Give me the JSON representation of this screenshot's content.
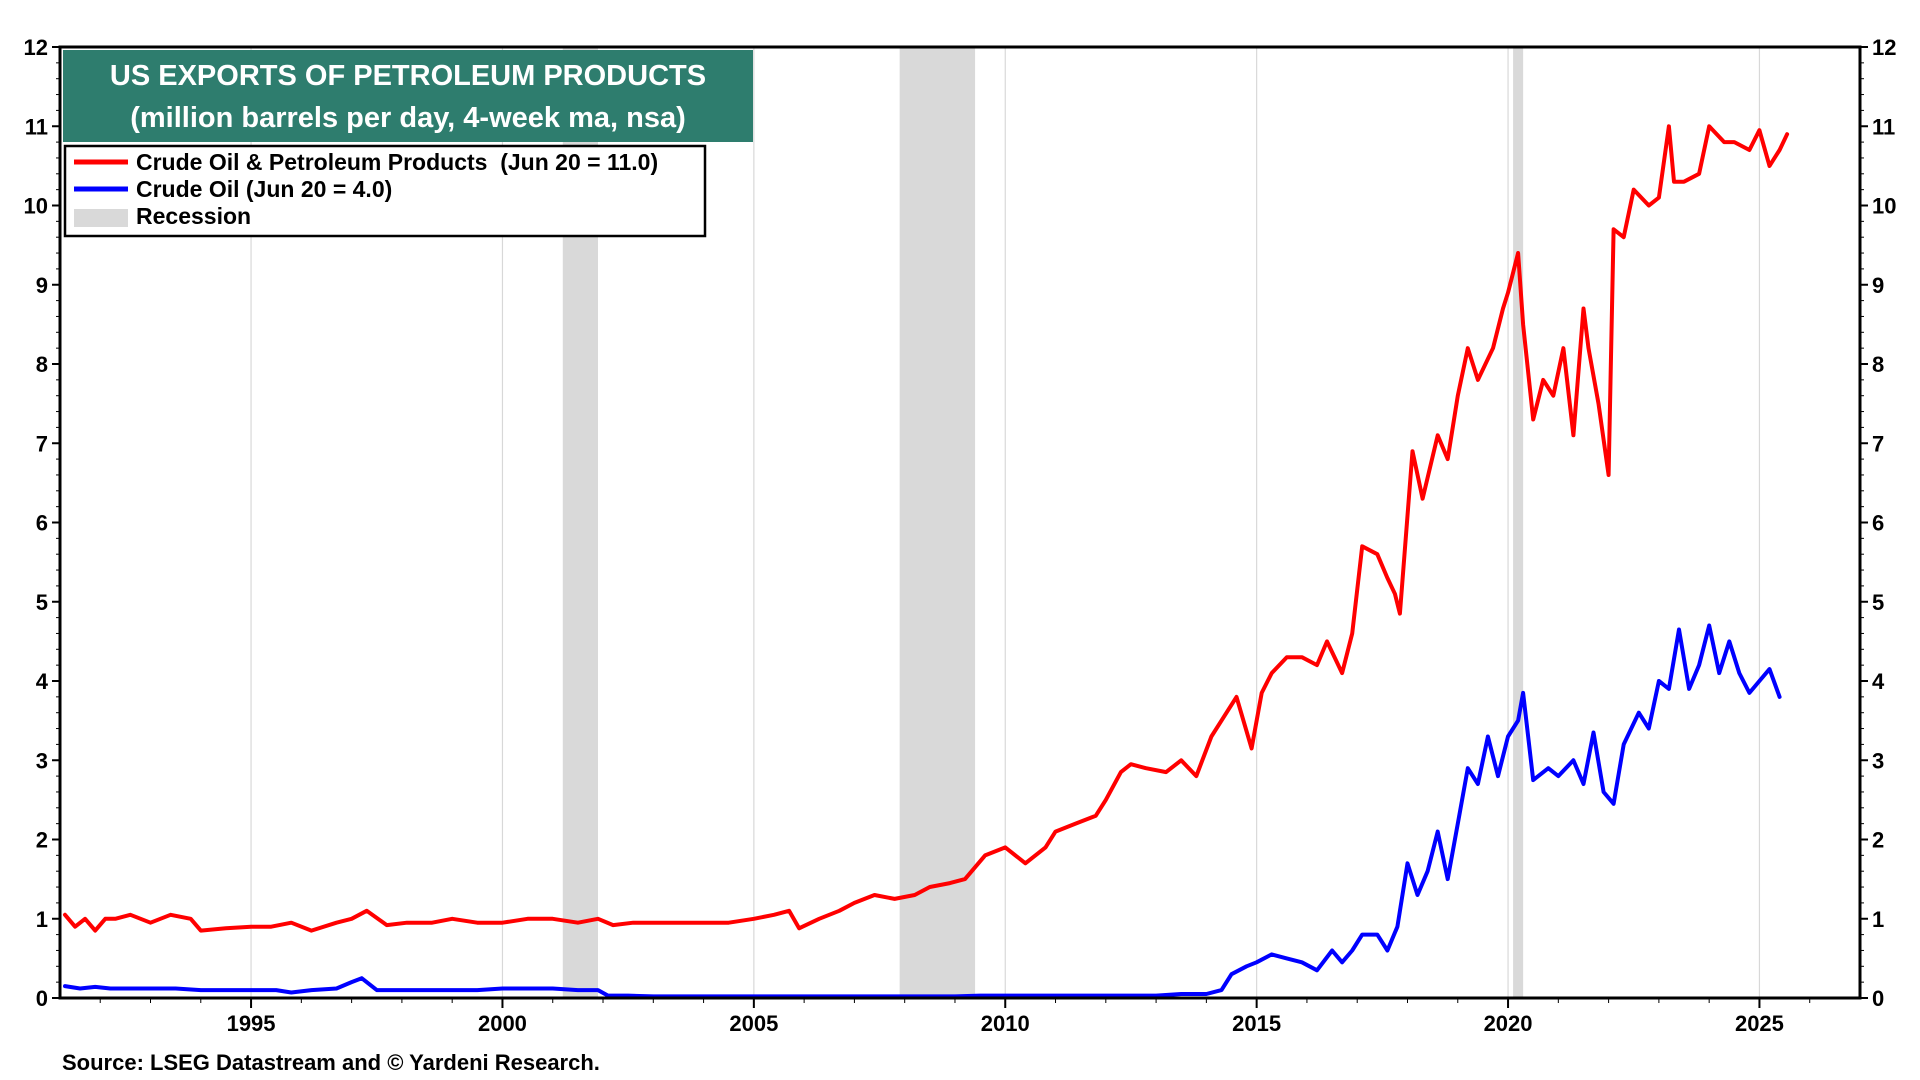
{
  "chart_data": {
    "type": "line",
    "title": "US EXPORTS OF PETROLEUM PRODUCTS",
    "subtitle": "(million barrels per day, 4-week ma, nsa)",
    "source": "Source: LSEG Datastream and © Yardeni Research.",
    "xlim": [
      1991.2,
      2027.0
    ],
    "ylim": [
      0,
      12
    ],
    "x_ticks": [
      1995,
      2000,
      2005,
      2010,
      2015,
      2020,
      2025
    ],
    "x_tick_labels": [
      "1995",
      "2000",
      "2005",
      "2010",
      "2015",
      "2020",
      "2025"
    ],
    "y_ticks": [
      0,
      1,
      2,
      3,
      4,
      5,
      6,
      7,
      8,
      9,
      10,
      11,
      12
    ],
    "y_tick_labels": [
      "0",
      "1",
      "2",
      "3",
      "4",
      "5",
      "6",
      "7",
      "8",
      "9",
      "10",
      "11",
      "12"
    ],
    "grid": "vertical",
    "legend_position": "top-left",
    "recessions": [
      {
        "start": 2001.2,
        "end": 2001.9
      },
      {
        "start": 2007.9,
        "end": 2009.4
      },
      {
        "start": 2020.1,
        "end": 2020.3
      }
    ],
    "series": [
      {
        "name": "Crude Oil & Petroleum Products  (Jun 20 = 11.0)",
        "color": "#ff0000",
        "x": [
          1991.3,
          1991.5,
          1991.7,
          1991.9,
          1992.1,
          1992.3,
          1992.6,
          1993.0,
          1993.4,
          1993.8,
          1994.0,
          1994.5,
          1995.0,
          1995.4,
          1995.8,
          1996.2,
          1996.7,
          1997.0,
          1997.3,
          1997.7,
          1998.1,
          1998.6,
          1999.0,
          1999.5,
          2000.0,
          2000.5,
          2001.0,
          2001.5,
          2001.9,
          2002.2,
          2002.6,
          2003.0,
          2003.5,
          2004.0,
          2004.5,
          2005.0,
          2005.4,
          2005.7,
          2005.9,
          2006.3,
          2006.7,
          2007.0,
          2007.4,
          2007.8,
          2008.2,
          2008.5,
          2008.9,
          2009.2,
          2009.6,
          2010.0,
          2010.4,
          2010.8,
          2011.0,
          2011.4,
          2011.8,
          2012.0,
          2012.3,
          2012.5,
          2012.8,
          2013.2,
          2013.5,
          2013.8,
          2014.1,
          2014.4,
          2014.6,
          2014.9,
          2015.1,
          2015.3,
          2015.6,
          2015.9,
          2016.2,
          2016.4,
          2016.7,
          2016.9,
          2017.1,
          2017.4,
          2017.6,
          2017.75,
          2017.85,
          2018.1,
          2018.3,
          2018.6,
          2018.8,
          2019.0,
          2019.2,
          2019.4,
          2019.7,
          2019.9,
          2020.0,
          2020.2,
          2020.3,
          2020.5,
          2020.7,
          2020.9,
          2021.1,
          2021.3,
          2021.5,
          2021.6,
          2021.8,
          2022.0,
          2022.1,
          2022.3,
          2022.5,
          2022.8,
          2023.0,
          2023.2,
          2023.3,
          2023.5,
          2023.8,
          2024.0,
          2024.3,
          2024.5,
          2024.8,
          2025.0,
          2025.2,
          2025.4,
          2025.55
        ],
        "y": [
          1.05,
          0.9,
          1.0,
          0.85,
          1.0,
          1.0,
          1.05,
          0.95,
          1.05,
          1.0,
          0.85,
          0.88,
          0.9,
          0.9,
          0.95,
          0.85,
          0.95,
          1.0,
          1.1,
          0.92,
          0.95,
          0.95,
          1.0,
          0.95,
          0.95,
          1.0,
          1.0,
          0.95,
          1.0,
          0.92,
          0.95,
          0.95,
          0.95,
          0.95,
          0.95,
          1.0,
          1.05,
          1.1,
          0.88,
          1.0,
          1.1,
          1.2,
          1.3,
          1.25,
          1.3,
          1.4,
          1.45,
          1.5,
          1.8,
          1.9,
          1.7,
          1.9,
          2.1,
          2.2,
          2.3,
          2.5,
          2.85,
          2.95,
          2.9,
          2.85,
          3.0,
          2.8,
          3.3,
          3.6,
          3.8,
          3.15,
          3.85,
          4.1,
          4.3,
          4.3,
          4.2,
          4.5,
          4.1,
          4.6,
          5.7,
          5.6,
          5.3,
          5.1,
          4.85,
          6.9,
          6.3,
          7.1,
          6.8,
          7.6,
          8.2,
          7.8,
          8.2,
          8.7,
          8.9,
          9.4,
          8.5,
          7.3,
          7.8,
          7.6,
          8.2,
          7.1,
          8.7,
          8.2,
          7.5,
          6.6,
          9.7,
          9.6,
          10.2,
          10.0,
          10.1,
          11.0,
          10.3,
          10.3,
          10.4,
          11.0,
          10.8,
          10.8,
          10.7,
          10.95,
          10.5,
          10.7,
          10.9
        ]
      },
      {
        "name": "Crude Oil (Jun 20 = 4.0)",
        "color": "#0000ff",
        "x": [
          1991.3,
          1991.6,
          1991.9,
          1992.2,
          1992.6,
          1993.0,
          1993.5,
          1994.0,
          1994.5,
          1995.0,
          1995.5,
          1995.8,
          1996.2,
          1996.7,
          1997.0,
          1997.2,
          1997.5,
          1998.0,
          1998.5,
          1999.0,
          1999.5,
          2000.0,
          2000.5,
          2001.0,
          2001.5,
          2001.9,
          2002.1,
          2002.5,
          2003.0,
          2004.0,
          2005.0,
          2006.0,
          2007.0,
          2008.0,
          2009.0,
          2009.5,
          2010.0,
          2011.0,
          2012.0,
          2013.0,
          2013.5,
          2014.0,
          2014.3,
          2014.5,
          2014.8,
          2015.0,
          2015.3,
          2015.6,
          2015.9,
          2016.2,
          2016.5,
          2016.7,
          2016.9,
          2017.1,
          2017.4,
          2017.6,
          2017.8,
          2018.0,
          2018.2,
          2018.4,
          2018.6,
          2018.8,
          2019.0,
          2019.2,
          2019.4,
          2019.6,
          2019.8,
          2020.0,
          2020.2,
          2020.3,
          2020.5,
          2020.8,
          2021.0,
          2021.3,
          2021.5,
          2021.7,
          2021.9,
          2022.1,
          2022.3,
          2022.6,
          2022.8,
          2023.0,
          2023.2,
          2023.4,
          2023.6,
          2023.8,
          2024.0,
          2024.2,
          2024.4,
          2024.6,
          2024.8,
          2025.0,
          2025.2,
          2025.4
        ],
        "y": [
          0.15,
          0.12,
          0.14,
          0.12,
          0.12,
          0.12,
          0.12,
          0.1,
          0.1,
          0.1,
          0.1,
          0.07,
          0.1,
          0.12,
          0.2,
          0.25,
          0.1,
          0.1,
          0.1,
          0.1,
          0.1,
          0.12,
          0.12,
          0.12,
          0.1,
          0.1,
          0.03,
          0.03,
          0.02,
          0.02,
          0.02,
          0.02,
          0.02,
          0.02,
          0.02,
          0.03,
          0.03,
          0.03,
          0.03,
          0.03,
          0.05,
          0.05,
          0.1,
          0.3,
          0.4,
          0.45,
          0.55,
          0.5,
          0.45,
          0.35,
          0.6,
          0.45,
          0.6,
          0.8,
          0.8,
          0.6,
          0.9,
          1.7,
          1.3,
          1.6,
          2.1,
          1.5,
          2.2,
          2.9,
          2.7,
          3.3,
          2.8,
          3.3,
          3.5,
          3.85,
          2.75,
          2.9,
          2.8,
          3.0,
          2.7,
          3.35,
          2.6,
          2.45,
          3.2,
          3.6,
          3.4,
          4.0,
          3.9,
          4.65,
          3.9,
          4.2,
          4.7,
          4.1,
          4.5,
          4.1,
          3.85,
          4.0,
          4.15,
          3.8
        ]
      }
    ],
    "legend_recession_label": "Recession",
    "recession_color": "#d9d9d9",
    "title_box_color": "#2e7d6e"
  }
}
